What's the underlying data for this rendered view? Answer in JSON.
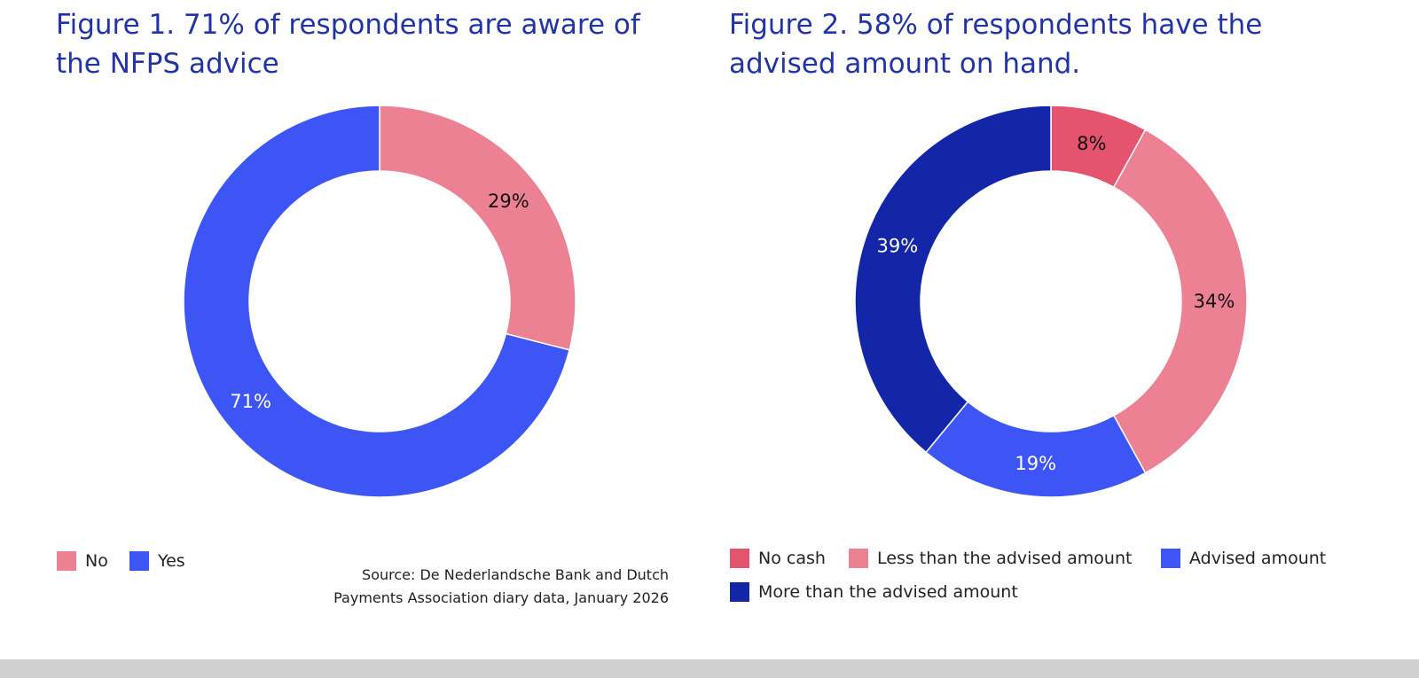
{
  "chart_data": [
    {
      "type": "pie",
      "title": "Figure 1.  71% of respondents are aware of the NFPS advice",
      "categories": [
        "No",
        "Yes"
      ],
      "values": [
        29,
        71
      ],
      "labels": [
        "29%",
        "71%"
      ],
      "colors": [
        "#ec8194",
        "#3d55f5"
      ],
      "label_colors": [
        "#111111",
        "#ffffff"
      ],
      "legend": "bottom-left",
      "donut": true
    },
    {
      "type": "pie",
      "title": "Figure 2.  58% of respondents have the advised amount on hand.",
      "categories": [
        "No cash",
        "Less than the advised amount",
        "Advised amount",
        "More than the advised amount"
      ],
      "values": [
        8,
        34,
        19,
        39
      ],
      "labels": [
        "8%",
        "34%",
        "19%",
        "39%"
      ],
      "colors": [
        "#e5546f",
        "#ec8194",
        "#3d55f5",
        "#1326a8"
      ],
      "label_colors": [
        "#111111",
        "#111111",
        "#ffffff",
        "#ffffff"
      ],
      "legend": "bottom",
      "donut": true
    }
  ],
  "source": {
    "line1": "Source: De Nederlandsche Bank and Dutch",
    "line2": "Payments Association diary data, January 2026"
  }
}
